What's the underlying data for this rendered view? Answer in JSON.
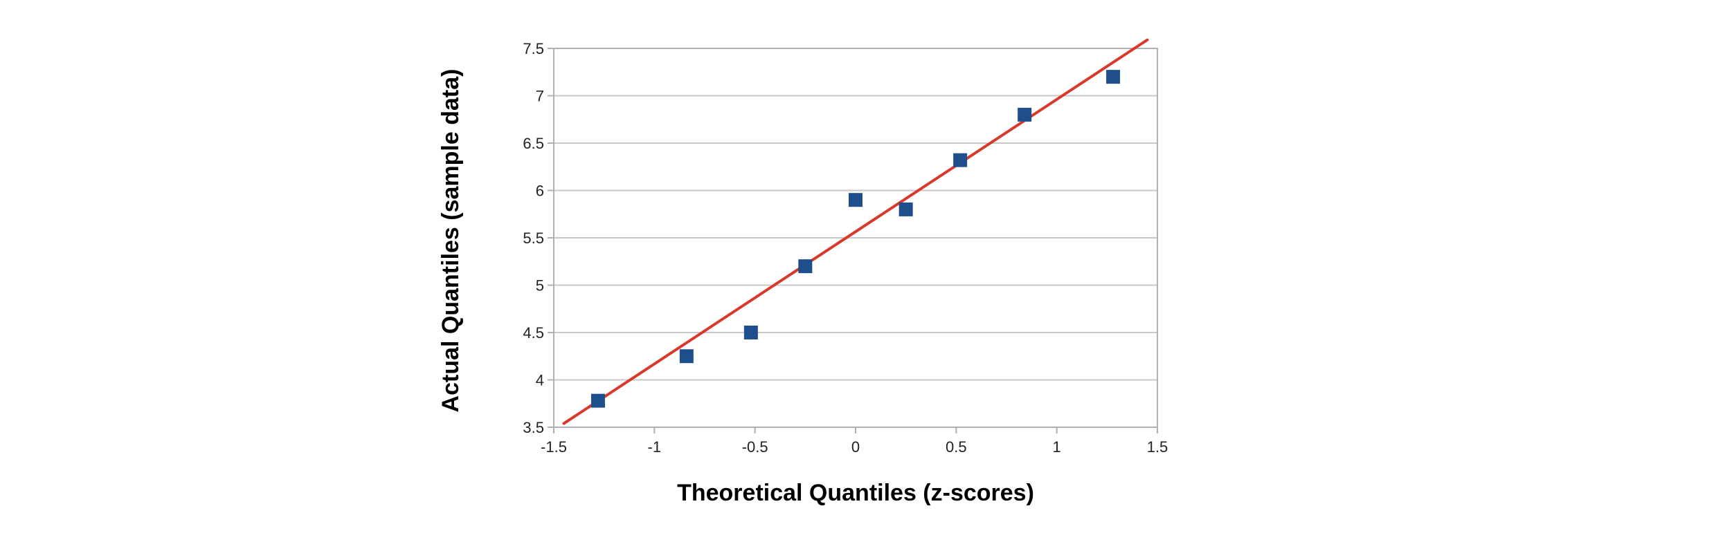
{
  "chart_data": {
    "type": "scatter",
    "title": "",
    "xlabel": "Theoretical Quantiles (z-scores)",
    "ylabel": "Actual Quantiles (sample data)",
    "xlim": [
      -1.5,
      1.5
    ],
    "ylim": [
      3.5,
      7.5
    ],
    "xticks": [
      "-1.5",
      "-1",
      "-0.5",
      "0",
      "0.5",
      "1",
      "1.5"
    ],
    "yticks": [
      "3.5",
      "4",
      "4.5",
      "5",
      "5.5",
      "6",
      "6.5",
      "7",
      "7.5"
    ],
    "grid": true,
    "series": [
      {
        "marker": "square",
        "color": "#1f4e8c",
        "x": [
          -1.28,
          -0.84,
          -0.52,
          -0.25,
          0.0,
          0.25,
          0.52,
          0.84,
          1.28
        ],
        "y": [
          3.78,
          4.25,
          4.5,
          5.2,
          5.9,
          5.8,
          6.32,
          6.8,
          7.2
        ]
      }
    ],
    "trendline": {
      "color": "#d9392b",
      "x": [
        -1.45,
        1.45
      ],
      "y": [
        3.54,
        7.59
      ]
    }
  }
}
